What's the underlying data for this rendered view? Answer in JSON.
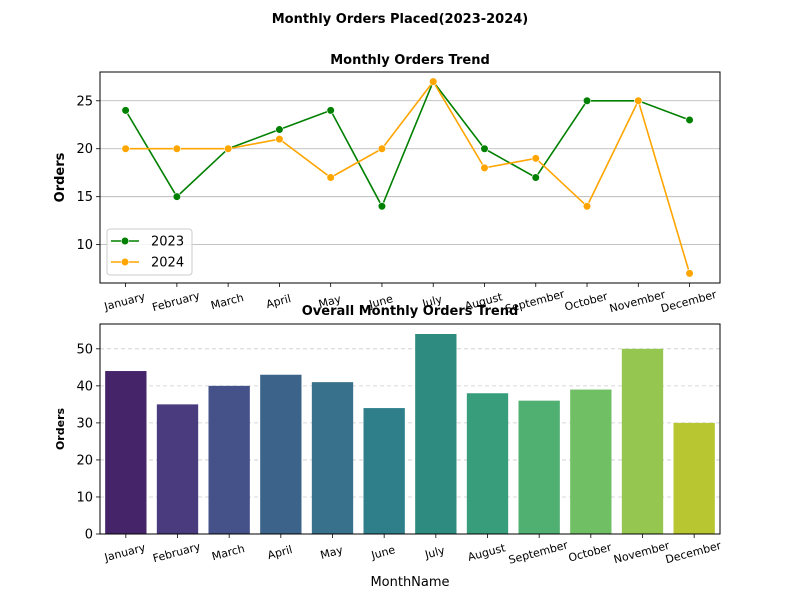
{
  "figure": {
    "title": "Monthly Orders Placed(2023-2024)"
  },
  "chart_data": [
    {
      "type": "line",
      "title": "Monthly Orders Trend",
      "xlabel": "",
      "ylabel": "Orders",
      "categories": [
        "January",
        "February",
        "March",
        "April",
        "May",
        "June",
        "July",
        "August",
        "September",
        "October",
        "November",
        "December"
      ],
      "series": [
        {
          "name": "2023",
          "color": "#008000",
          "values": [
            24,
            15,
            20,
            22,
            24,
            14,
            27,
            20,
            17,
            25,
            25,
            23
          ]
        },
        {
          "name": "2024",
          "color": "#FFA500",
          "values": [
            20,
            20,
            20,
            21,
            17,
            20,
            27,
            18,
            19,
            14,
            25,
            7
          ]
        }
      ],
      "ylim": [
        6.0,
        28.0
      ],
      "yticks": [
        10,
        15,
        20,
        25
      ],
      "grid": "horizontal",
      "legend": "lower-left"
    },
    {
      "type": "bar",
      "title": "Overall Monthly Orders Trend",
      "xlabel": "MonthName",
      "ylabel": "Orders",
      "categories": [
        "January",
        "February",
        "March",
        "April",
        "May",
        "June",
        "July",
        "August",
        "September",
        "October",
        "November",
        "December"
      ],
      "values": [
        44,
        35,
        40,
        43,
        41,
        34,
        54,
        38,
        36,
        39,
        50,
        30
      ],
      "colors": [
        "#46246A",
        "#4A3A7E",
        "#455189",
        "#3C648A",
        "#37718B",
        "#2F7F8B",
        "#2E8B7F",
        "#379D7A",
        "#4FB072",
        "#70BF65",
        "#95C650",
        "#B8C632"
      ],
      "ylim": [
        0,
        56.7
      ],
      "yticks": [
        0,
        10,
        20,
        30,
        40,
        50
      ],
      "grid": "horizontal-dashed"
    }
  ]
}
